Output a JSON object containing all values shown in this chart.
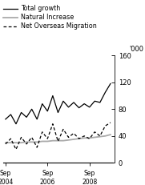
{
  "ylabel_right": "'000",
  "ylim": [
    0,
    160
  ],
  "yticks": [
    0,
    40,
    80,
    120,
    160
  ],
  "legend": [
    {
      "label": "Total growth",
      "color": "#000000",
      "linestyle": "solid",
      "linewidth": 0.9
    },
    {
      "label": "Natural Increase",
      "color": "#aaaaaa",
      "linestyle": "solid",
      "linewidth": 1.3
    },
    {
      "label": "Net Overseas Migration",
      "color": "#000000",
      "linestyle": "dashed",
      "linewidth": 0.9
    }
  ],
  "xtick_labels": [
    "Sep\n2004",
    "Sep\n2006",
    "Sep\n2008"
  ],
  "total_growth": [
    65,
    72,
    58,
    75,
    68,
    80,
    65,
    88,
    77,
    100,
    75,
    92,
    83,
    90,
    82,
    88,
    83,
    92,
    90,
    105,
    118
  ],
  "natural_increase": [
    30,
    30,
    30,
    30,
    31,
    31,
    31,
    32,
    32,
    33,
    33,
    33,
    34,
    35,
    36,
    37,
    37,
    38,
    39,
    40,
    42
  ],
  "net_overseas_migration": [
    28,
    36,
    20,
    38,
    28,
    38,
    23,
    46,
    36,
    58,
    32,
    50,
    38,
    44,
    36,
    40,
    36,
    46,
    40,
    55,
    60
  ],
  "background_color": "#ffffff",
  "n_points": 21
}
